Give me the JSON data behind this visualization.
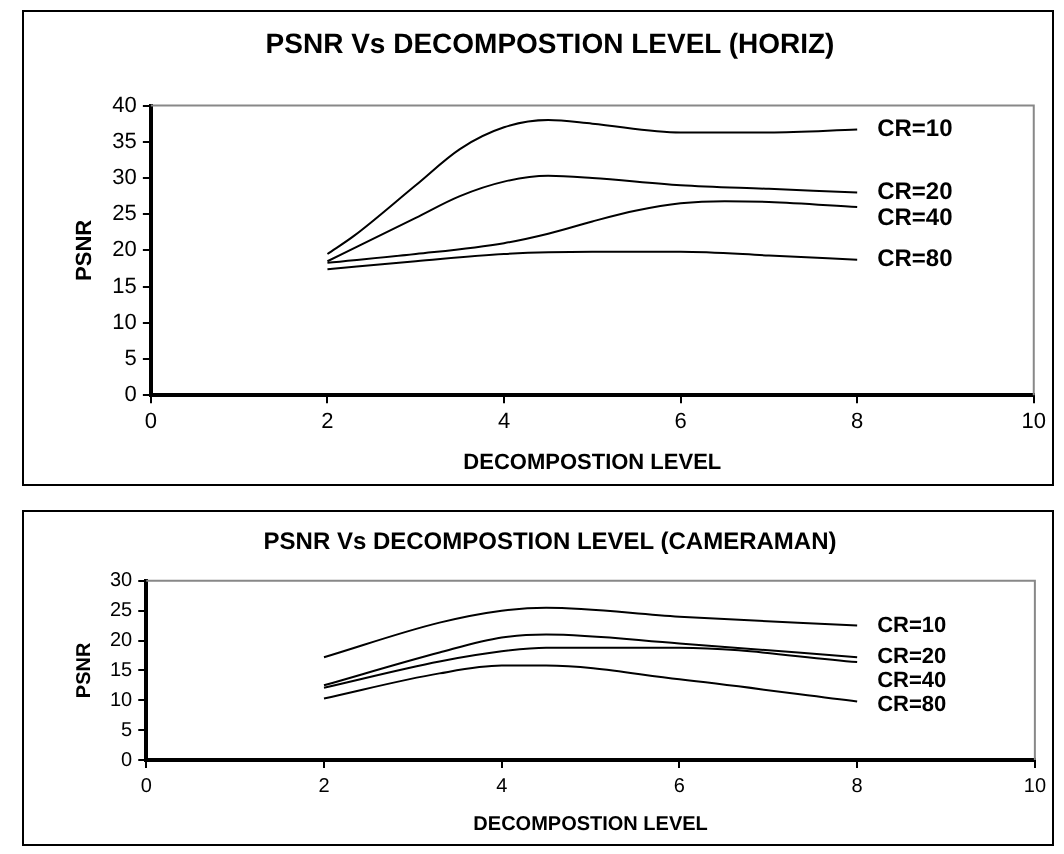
{
  "chart_data": [
    {
      "type": "line",
      "title": "PSNR Vs DECOMPOSTION LEVEL (HORIZ)",
      "xlabel": "DECOMPOSTION LEVEL",
      "ylabel": "PSNR",
      "xlim": [
        0,
        10
      ],
      "xticks": [
        0,
        2,
        4,
        6,
        8,
        10
      ],
      "ylim": [
        0,
        40
      ],
      "yticks": [
        0,
        5,
        10,
        15,
        20,
        25,
        30,
        35,
        40
      ],
      "grid": false,
      "legend": false,
      "marker": "none",
      "series": [
        {
          "name": "CR=10",
          "color": "#000000",
          "x": [
            2,
            2.3,
            3,
            3.5,
            4,
            4.5,
            5,
            6,
            7,
            8
          ],
          "values": [
            19.5,
            22,
            29,
            34,
            37,
            38,
            37.5,
            36.3,
            36.3,
            36.7
          ]
        },
        {
          "name": "CR=20",
          "color": "#000000",
          "x": [
            2,
            3,
            3.5,
            4,
            4.5,
            5,
            6,
            7,
            8
          ],
          "values": [
            18.5,
            24.5,
            27.5,
            29.5,
            30.3,
            30,
            29,
            28.5,
            28
          ]
        },
        {
          "name": "CR=40",
          "color": "#000000",
          "x": [
            2,
            3,
            4,
            4.5,
            5,
            5.5,
            6,
            6.5,
            7,
            8
          ],
          "values": [
            18.3,
            19.5,
            21,
            22.3,
            24,
            25.5,
            26.5,
            26.8,
            26.7,
            26
          ]
        },
        {
          "name": "CR=80",
          "color": "#000000",
          "x": [
            2,
            3,
            4,
            5,
            6,
            7,
            8
          ],
          "values": [
            17.4,
            18.5,
            19.5,
            19.8,
            19.8,
            19.3,
            18.7
          ]
        }
      ]
    },
    {
      "type": "line",
      "title": "PSNR Vs DECOMPOSTION LEVEL (CAMERAMAN)",
      "xlabel": "DECOMPOSTION LEVEL",
      "ylabel": "PSNR",
      "xlim": [
        0,
        10
      ],
      "xticks": [
        0,
        2,
        4,
        6,
        8,
        10
      ],
      "ylim": [
        0,
        30
      ],
      "yticks": [
        0,
        5,
        10,
        15,
        20,
        25,
        30
      ],
      "grid": false,
      "legend": false,
      "marker": "none",
      "series": [
        {
          "name": "CR=10",
          "color": "#000000",
          "x": [
            2,
            3.3,
            4,
            4.5,
            6,
            8
          ],
          "values": [
            17.2,
            23,
            25,
            25.5,
            24,
            22.5
          ]
        },
        {
          "name": "CR=20",
          "color": "#000000",
          "x": [
            2,
            3.3,
            4,
            4.5,
            6,
            8
          ],
          "values": [
            12.5,
            18,
            20.5,
            21,
            19.5,
            17.2
          ]
        },
        {
          "name": "CR=40",
          "color": "#000000",
          "x": [
            2,
            3.3,
            4,
            4.5,
            6,
            8
          ],
          "values": [
            12.1,
            16.5,
            18.2,
            18.8,
            18.8,
            16.4
          ]
        },
        {
          "name": "CR=80",
          "color": "#000000",
          "x": [
            2,
            3.3,
            4,
            4.5,
            6,
            8
          ],
          "values": [
            10.3,
            14.5,
            15.8,
            15.8,
            13.5,
            9.8
          ]
        }
      ]
    }
  ]
}
